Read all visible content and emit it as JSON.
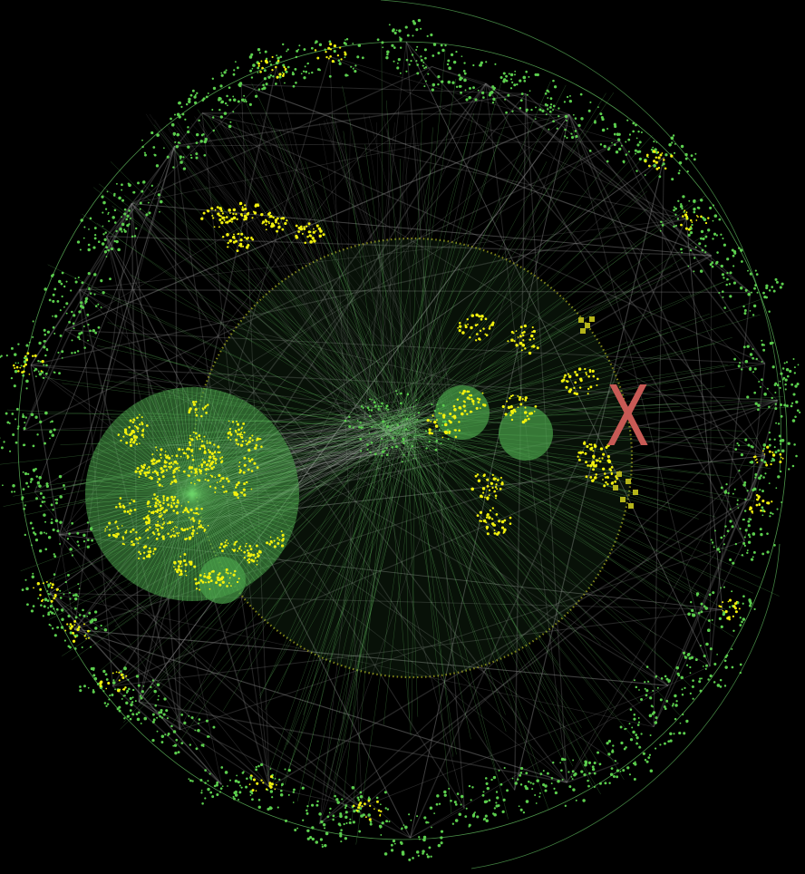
{
  "canvas": {
    "background": "#000000"
  },
  "colors": {
    "edge_gray": "#8a8a8a",
    "edge_green": "#6dd46a",
    "node_green": "#5ccf4e",
    "node_yellow": "#f2f20e",
    "hub_green": "#4aa34a",
    "ring_olive": "#9a9a1c",
    "marker_olive": "#b5b51a",
    "close_mark": "#c75a55"
  },
  "close_mark": {
    "icon": "close-x-icon",
    "glyph": "X"
  }
}
